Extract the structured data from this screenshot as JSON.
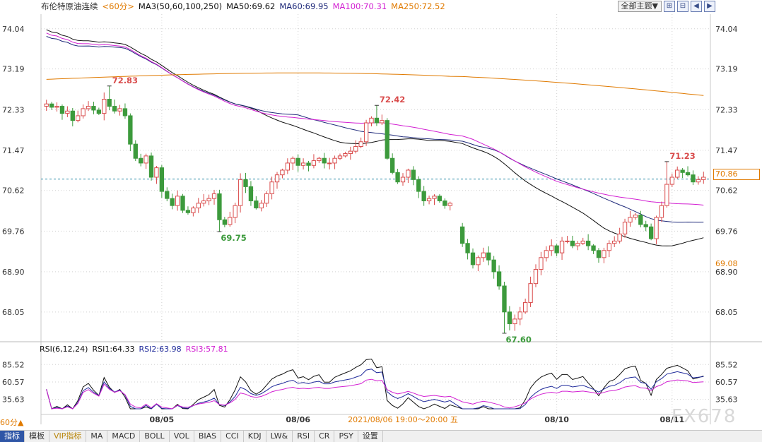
{
  "header": {
    "instrument": "布伦特原油连续",
    "period": "<60分>",
    "ma_label": "MA3(50,60,100,250)",
    "ma50": "MA50:69.62",
    "ma60": "MA60:69.95",
    "ma100": "MA100:70.31",
    "ma250": "MA250:72.52",
    "theme_button": "全部主题▼"
  },
  "colors": {
    "up": "#d94b4b",
    "down": "#3c9a3c",
    "ma50": "#111111",
    "ma60": "#1f2a7a",
    "ma100": "#d21fd2",
    "ma250": "#e07a00",
    "accent": "#e07a00"
  },
  "rsi_header": {
    "title": "RSI(6,12,24)",
    "rsi1": "RSI1:64.33",
    "rsi2": "RSI2:63.98",
    "rsi3": "RSI3:57.81"
  },
  "chart_data": {
    "type": "candlestick",
    "price_axis_ticks": [
      "74.04",
      "73.19",
      "72.33",
      "71.47",
      "70.62",
      "69.76",
      "68.90",
      "68.05"
    ],
    "price_axis_values": [
      74.04,
      73.19,
      72.33,
      71.47,
      70.62,
      69.76,
      68.9,
      68.05
    ],
    "ylim": [
      67.45,
      74.35
    ],
    "current_price": "70.86",
    "current_price_value": 70.86,
    "extra_right_label": "69.08",
    "extra_right_value": 69.08,
    "annotations": [
      {
        "label": "72.83",
        "bar": 12,
        "value": 72.83,
        "kind": "high"
      },
      {
        "label": "69.75",
        "bar": 33,
        "value": 69.75,
        "kind": "low"
      },
      {
        "label": "72.42",
        "bar": 63,
        "value": 72.42,
        "kind": "high"
      },
      {
        "label": "67.60",
        "bar": 86,
        "value": 67.6,
        "kind": "low"
      },
      {
        "label": "71.23",
        "bar": 117,
        "value": 71.23,
        "kind": "high"
      }
    ],
    "x_labels": [
      {
        "label": "08/05",
        "bar": 22
      },
      {
        "label": "08/06",
        "bar": 48
      },
      {
        "label": "2021/08/06 19:00～20:00 五",
        "bar": 68
      },
      {
        "label": "08/10",
        "bar": 96
      },
      {
        "label": "08/11",
        "bar": 118
      }
    ],
    "gap_after_bar": 77,
    "closes": [
      72.45,
      72.38,
      72.4,
      72.25,
      72.3,
      72.1,
      72.2,
      72.35,
      72.4,
      72.32,
      72.25,
      72.55,
      72.4,
      72.3,
      72.35,
      72.2,
      71.6,
      71.3,
      71.2,
      71.35,
      70.9,
      71.1,
      70.6,
      70.45,
      70.3,
      70.5,
      70.2,
      70.15,
      70.25,
      70.35,
      70.4,
      70.45,
      70.55,
      70.0,
      69.9,
      70.05,
      70.3,
      70.85,
      70.7,
      70.4,
      70.25,
      70.35,
      70.55,
      70.8,
      70.95,
      71.05,
      71.2,
      71.3,
      71.15,
      71.2,
      71.15,
      71.25,
      71.3,
      71.2,
      71.2,
      71.3,
      71.35,
      71.4,
      71.45,
      71.55,
      71.65,
      72.05,
      72.15,
      72.05,
      72.1,
      71.3,
      71.0,
      70.8,
      70.9,
      71.05,
      70.85,
      70.6,
      70.4,
      70.45,
      70.5,
      70.4,
      70.3,
      70.35,
      69.5,
      69.3,
      69.05,
      69.2,
      69.3,
      69.15,
      68.9,
      68.6,
      68.05,
      67.8,
      67.9,
      68.05,
      68.25,
      68.65,
      68.95,
      69.2,
      69.35,
      69.45,
      69.3,
      69.55,
      69.55,
      69.45,
      69.5,
      69.55,
      69.45,
      69.35,
      69.2,
      69.35,
      69.5,
      69.55,
      69.7,
      69.95,
      70.05,
      70.1,
      69.9,
      69.85,
      69.6,
      70.05,
      70.3,
      70.75,
      70.9,
      71.05,
      71.0,
      70.95,
      70.8,
      70.85,
      70.9
    ],
    "series_ma": [
      {
        "name": "MA50",
        "start": [
          74.02,
          0
        ],
        "end": [
          69.62,
          124
        ]
      },
      {
        "name": "MA60",
        "start": [
          73.88,
          0
        ],
        "end": [
          69.95,
          124
        ]
      },
      {
        "name": "MA100",
        "start": [
          73.95,
          0
        ],
        "end": [
          70.31,
          124
        ]
      },
      {
        "name": "MA250",
        "start": [
          72.97,
          0
        ],
        "end": [
          72.52,
          124
        ]
      }
    ],
    "rsi": {
      "axis_ticks": [
        "85.52",
        "60.57",
        "35.63"
      ],
      "axis_values": [
        85.52,
        60.57,
        35.63
      ],
      "ylim": [
        18,
        100
      ],
      "last": {
        "RSI1": 64.33,
        "RSI2": 63.98,
        "RSI3": 57.81
      }
    }
  },
  "bottom_tabs": [
    "指标",
    "模板",
    "VIP指标",
    "MA",
    "MACD",
    "BOLL",
    "VOL",
    "BIAS",
    "CCI",
    "KDJ",
    "LW&",
    "RSI",
    "CR",
    "PSY",
    "设置"
  ],
  "period_tag": "60分▲",
  "watermark": "FX678"
}
